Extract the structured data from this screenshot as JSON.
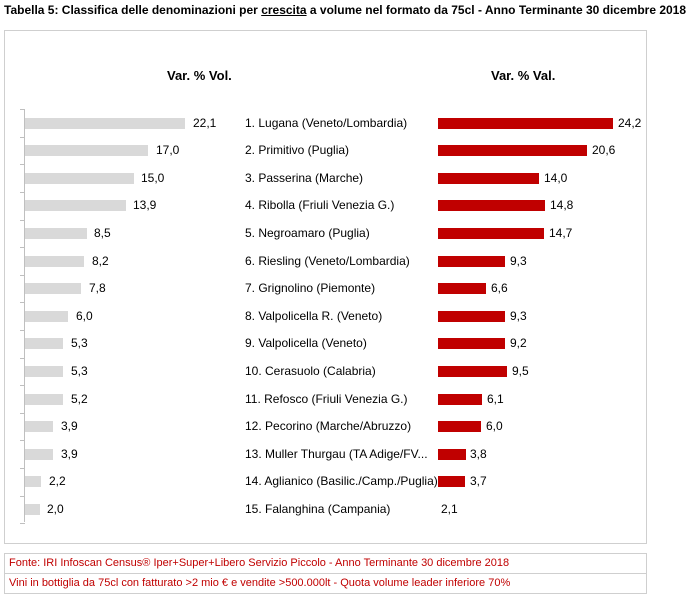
{
  "title": {
    "prefix": "Tabella 5: Classifica delle denominazioni per ",
    "underlined": "crescita",
    "suffix": "  a volume nel formato da 75cl -  Anno Terminante 30 dicembre 2018"
  },
  "chart_data": {
    "type": "bar",
    "categories": [
      "1. Lugana (Veneto/Lombardia)",
      "2. Primitivo (Puglia)",
      "3. Passerina (Marche)",
      "4. Ribolla (Friuli Venezia G.)",
      "5. Negroamaro (Puglia)",
      "6. Riesling (Veneto/Lombardia)",
      "7. Grignolino (Piemonte)",
      "8. Valpolicella R. (Veneto)",
      "9. Valpolicella (Veneto)",
      "10. Cerasuolo (Calabria)",
      "11. Refosco (Friuli Venezia G.)",
      "12. Pecorino (Marche/Abruzzo)",
      "13. Muller Thurgau (TA Adige/FV...",
      "14. Aglianico (Basilic./Camp./Puglia)",
      "15. Falanghina (Campania)"
    ],
    "series": [
      {
        "name": "Var. % Vol.",
        "color": "#d9d9d9",
        "values": [
          22.1,
          17.0,
          15.0,
          13.9,
          8.5,
          8.2,
          7.8,
          6.0,
          5.3,
          5.3,
          5.2,
          3.9,
          3.9,
          2.2,
          2.0
        ],
        "labels": [
          "22,1",
          "17,0",
          "15,0",
          "13,9",
          "8,5",
          "8,2",
          "7,8",
          "6,0",
          "5,3",
          "5,3",
          "5,2",
          "3,9",
          "3,9",
          "2,2",
          "2,0"
        ]
      },
      {
        "name": "Var. % Val.",
        "color": "#c00000",
        "values": [
          24.2,
          20.6,
          14.0,
          14.8,
          14.7,
          9.3,
          6.6,
          9.3,
          9.2,
          9.5,
          6.1,
          6.0,
          3.8,
          3.7,
          2.1
        ],
        "labels": [
          "24,2",
          "20,6",
          "14,0",
          "14,8",
          "14,7",
          "9,3",
          "6,6",
          "9,3",
          "9,2",
          "9,5",
          "6,1",
          "6,0",
          "3,8",
          "3,7",
          "2,1"
        ]
      }
    ],
    "xlim": [
      0,
      25
    ],
    "grid": false,
    "legend": "none"
  },
  "footer": {
    "source": "Fonte: IRI Infoscan Census® Iper+Super+Libero Servizio Piccolo - Anno Terminante 30 dicembre 2018",
    "note": "Vini in bottiglia da 75cl con fatturato >2 mio € e vendite >500.000lt - Quota volume leader inferiore 70%"
  }
}
